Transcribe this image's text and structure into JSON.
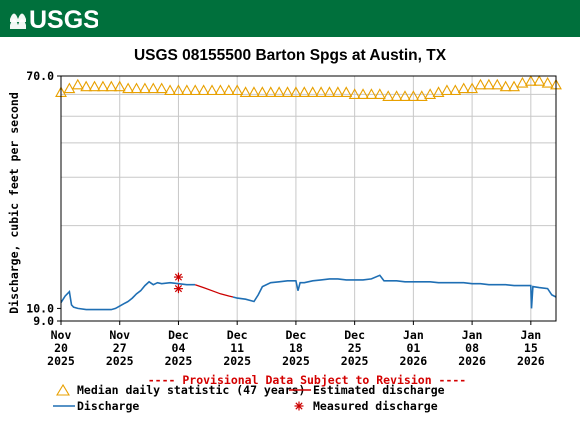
{
  "header": {
    "logo_text": "USGS",
    "title": "USGS 08155500 Barton Spgs at Austin, TX"
  },
  "chart_data": {
    "type": "line",
    "title": "USGS 08155500 Barton Spgs at Austin, TX",
    "ylabel": "Discharge, cubic feet per second",
    "y_scale": "log",
    "ylim": [
      9.0,
      70.0
    ],
    "y_ticks": [
      {
        "value": 70.0,
        "label": "70.0"
      },
      {
        "value": 10.0,
        "label": "10.0"
      },
      {
        "value": 9.0,
        "label": "9.0"
      }
    ],
    "y_grid": [
      20,
      30,
      40,
      50,
      60
    ],
    "xlim": [
      "2025-11-20",
      "2026-01-18"
    ],
    "x_ticks": [
      {
        "date": "2025-11-20",
        "month": "Nov",
        "day": "20",
        "year": "2025"
      },
      {
        "date": "2025-11-27",
        "month": "Nov",
        "day": "27",
        "year": "2025"
      },
      {
        "date": "2025-12-04",
        "month": "Dec",
        "day": "04",
        "year": "2025"
      },
      {
        "date": "2025-12-11",
        "month": "Dec",
        "day": "11",
        "year": "2025"
      },
      {
        "date": "2025-12-18",
        "month": "Dec",
        "day": "18",
        "year": "2025"
      },
      {
        "date": "2025-12-25",
        "month": "Dec",
        "day": "25",
        "year": "2025"
      },
      {
        "date": "2026-01-01",
        "month": "Jan",
        "day": "01",
        "year": "2026"
      },
      {
        "date": "2026-01-08",
        "month": "Jan",
        "day": "08",
        "year": "2026"
      },
      {
        "date": "2026-01-15",
        "month": "Jan",
        "day": "15",
        "year": "2026"
      }
    ],
    "grid": true,
    "provisional_note": "---- Provisional Data Subject to Revision ----",
    "series": [
      {
        "name": "Median daily statistic (47 years)",
        "kind": "median",
        "color": "#e8a000",
        "marker": "triangle",
        "points": [
          [
            "2025-11-20",
            61
          ],
          [
            "2025-11-21",
            63
          ],
          [
            "2025-11-22",
            65
          ],
          [
            "2025-11-23",
            64
          ],
          [
            "2025-11-24",
            64
          ],
          [
            "2025-11-25",
            64
          ],
          [
            "2025-11-26",
            64
          ],
          [
            "2025-11-27",
            64
          ],
          [
            "2025-11-28",
            63
          ],
          [
            "2025-11-29",
            63
          ],
          [
            "2025-11-30",
            63
          ],
          [
            "2025-12-01",
            63
          ],
          [
            "2025-12-02",
            63
          ],
          [
            "2025-12-03",
            62
          ],
          [
            "2025-12-04",
            62
          ],
          [
            "2025-12-05",
            62
          ],
          [
            "2025-12-06",
            62
          ],
          [
            "2025-12-07",
            62
          ],
          [
            "2025-12-08",
            62
          ],
          [
            "2025-12-09",
            62
          ],
          [
            "2025-12-10",
            62
          ],
          [
            "2025-12-11",
            62
          ],
          [
            "2025-12-12",
            61
          ],
          [
            "2025-12-13",
            61
          ],
          [
            "2025-12-14",
            61
          ],
          [
            "2025-12-15",
            61
          ],
          [
            "2025-12-16",
            61
          ],
          [
            "2025-12-17",
            61
          ],
          [
            "2025-12-18",
            61
          ],
          [
            "2025-12-19",
            61
          ],
          [
            "2025-12-20",
            61
          ],
          [
            "2025-12-21",
            61
          ],
          [
            "2025-12-22",
            61
          ],
          [
            "2025-12-23",
            61
          ],
          [
            "2025-12-24",
            61
          ],
          [
            "2025-12-25",
            60
          ],
          [
            "2025-12-26",
            60
          ],
          [
            "2025-12-27",
            60
          ],
          [
            "2025-12-28",
            60
          ],
          [
            "2025-12-29",
            59
          ],
          [
            "2025-12-30",
            59
          ],
          [
            "2025-12-31",
            59
          ],
          [
            "2026-01-01",
            59
          ],
          [
            "2026-01-02",
            59
          ],
          [
            "2026-01-03",
            60
          ],
          [
            "2026-01-04",
            61
          ],
          [
            "2026-01-05",
            62
          ],
          [
            "2026-01-06",
            62
          ],
          [
            "2026-01-07",
            63
          ],
          [
            "2026-01-08",
            63
          ],
          [
            "2026-01-09",
            65
          ],
          [
            "2026-01-10",
            65
          ],
          [
            "2026-01-11",
            65
          ],
          [
            "2026-01-12",
            64
          ],
          [
            "2026-01-13",
            64
          ],
          [
            "2026-01-14",
            66
          ],
          [
            "2026-01-15",
            67
          ],
          [
            "2026-01-16",
            67
          ],
          [
            "2026-01-17",
            66
          ],
          [
            "2026-01-18",
            65
          ]
        ]
      },
      {
        "name": "Discharge",
        "kind": "discharge",
        "color": "#1f6fb4",
        "points": [
          [
            "2025-11-20T00",
            10.5
          ],
          [
            "2025-11-20T12",
            11.1
          ],
          [
            "2025-11-21T00",
            11.5
          ],
          [
            "2025-11-21T06",
            10.3
          ],
          [
            "2025-11-21T12",
            10.1
          ],
          [
            "2025-11-22T00",
            10.0
          ],
          [
            "2025-11-23T00",
            9.9
          ],
          [
            "2025-11-24T00",
            9.9
          ],
          [
            "2025-11-25T00",
            9.9
          ],
          [
            "2025-11-26T00",
            9.9
          ],
          [
            "2025-11-26T12",
            10.0
          ],
          [
            "2025-11-27T00",
            10.2
          ],
          [
            "2025-11-27T12",
            10.4
          ],
          [
            "2025-11-28T00",
            10.6
          ],
          [
            "2025-11-28T12",
            10.9
          ],
          [
            "2025-11-29T00",
            11.3
          ],
          [
            "2025-11-29T12",
            11.6
          ],
          [
            "2025-11-30T00",
            12.1
          ],
          [
            "2025-11-30T12",
            12.5
          ],
          [
            "2025-12-01T00",
            12.2
          ],
          [
            "2025-12-01T12",
            12.4
          ],
          [
            "2025-12-02T00",
            12.3
          ],
          [
            "2025-12-03T00",
            12.4
          ],
          [
            "2025-12-04T00",
            12.3
          ],
          [
            "2025-12-05T00",
            12.2
          ],
          [
            "2025-12-06T00",
            12.2
          ]
        ]
      },
      {
        "name": "Estimated discharge",
        "kind": "estimated",
        "color": "#cc0000",
        "points": [
          [
            "2025-12-06T00",
            12.2
          ],
          [
            "2025-12-07T00",
            11.9
          ],
          [
            "2025-12-08T00",
            11.6
          ],
          [
            "2025-12-09T00",
            11.3
          ],
          [
            "2025-12-10T00",
            11.1
          ],
          [
            "2025-12-10T12",
            11.0
          ]
        ]
      },
      {
        "name": "Discharge",
        "kind": "discharge",
        "color": "#1f6fb4",
        "points": [
          [
            "2025-12-10T12",
            11.0
          ],
          [
            "2025-12-11T00",
            10.9
          ],
          [
            "2025-12-12T00",
            10.8
          ],
          [
            "2025-12-13T00",
            10.6
          ],
          [
            "2025-12-13T12",
            11.2
          ],
          [
            "2025-12-14T00",
            12.0
          ],
          [
            "2025-12-15T00",
            12.4
          ],
          [
            "2025-12-16T00",
            12.5
          ],
          [
            "2025-12-17T00",
            12.6
          ],
          [
            "2025-12-18T00",
            12.6
          ],
          [
            "2025-12-18T06",
            11.6
          ],
          [
            "2025-12-18T12",
            12.4
          ],
          [
            "2025-12-19T00",
            12.4
          ],
          [
            "2025-12-20T00",
            12.6
          ],
          [
            "2025-12-21T00",
            12.7
          ],
          [
            "2025-12-22T00",
            12.8
          ],
          [
            "2025-12-23T00",
            12.8
          ],
          [
            "2025-12-24T00",
            12.7
          ],
          [
            "2025-12-25T00",
            12.7
          ],
          [
            "2025-12-26T00",
            12.7
          ],
          [
            "2025-12-27T00",
            12.8
          ],
          [
            "2025-12-28T00",
            13.2
          ],
          [
            "2025-12-28T12",
            12.6
          ],
          [
            "2025-12-29T00",
            12.6
          ],
          [
            "2025-12-30T00",
            12.6
          ],
          [
            "2025-12-31T00",
            12.5
          ],
          [
            "2026-01-01T00",
            12.5
          ],
          [
            "2026-01-02T00",
            12.5
          ],
          [
            "2026-01-03T00",
            12.5
          ],
          [
            "2026-01-04T00",
            12.4
          ],
          [
            "2026-01-05T00",
            12.4
          ],
          [
            "2026-01-06T00",
            12.4
          ],
          [
            "2026-01-07T00",
            12.4
          ],
          [
            "2026-01-08T00",
            12.3
          ],
          [
            "2026-01-09T00",
            12.3
          ],
          [
            "2026-01-10T00",
            12.2
          ],
          [
            "2026-01-11T00",
            12.2
          ],
          [
            "2026-01-12T00",
            12.2
          ],
          [
            "2026-01-13T00",
            12.1
          ],
          [
            "2026-01-14T00",
            12.1
          ],
          [
            "2026-01-15T00",
            12.1
          ],
          [
            "2026-01-15T02",
            10.0
          ],
          [
            "2026-01-15T06",
            12.0
          ],
          [
            "2026-01-16T00",
            11.9
          ],
          [
            "2026-01-17T00",
            11.8
          ],
          [
            "2026-01-17T12",
            11.2
          ],
          [
            "2026-01-18T00",
            11.0
          ]
        ]
      },
      {
        "name": "Measured discharge",
        "kind": "measured",
        "color": "#cc0000",
        "marker": "asterisk",
        "points": [
          [
            "2025-12-04T00",
            13.0
          ],
          [
            "2025-12-04T00",
            11.8
          ]
        ]
      }
    ],
    "legend": [
      {
        "label": "Median daily statistic (47 years)",
        "symbol": "triangle",
        "color": "#e8a000",
        "position": "left"
      },
      {
        "label": "Estimated discharge",
        "symbol": "line",
        "color": "#cc0000",
        "position": "right"
      },
      {
        "label": "Discharge",
        "symbol": "line",
        "color": "#1f6fb4",
        "position": "left"
      },
      {
        "label": "Measured discharge",
        "symbol": "asterisk",
        "color": "#cc0000",
        "position": "right"
      }
    ],
    "legend_placement": "bottom"
  }
}
